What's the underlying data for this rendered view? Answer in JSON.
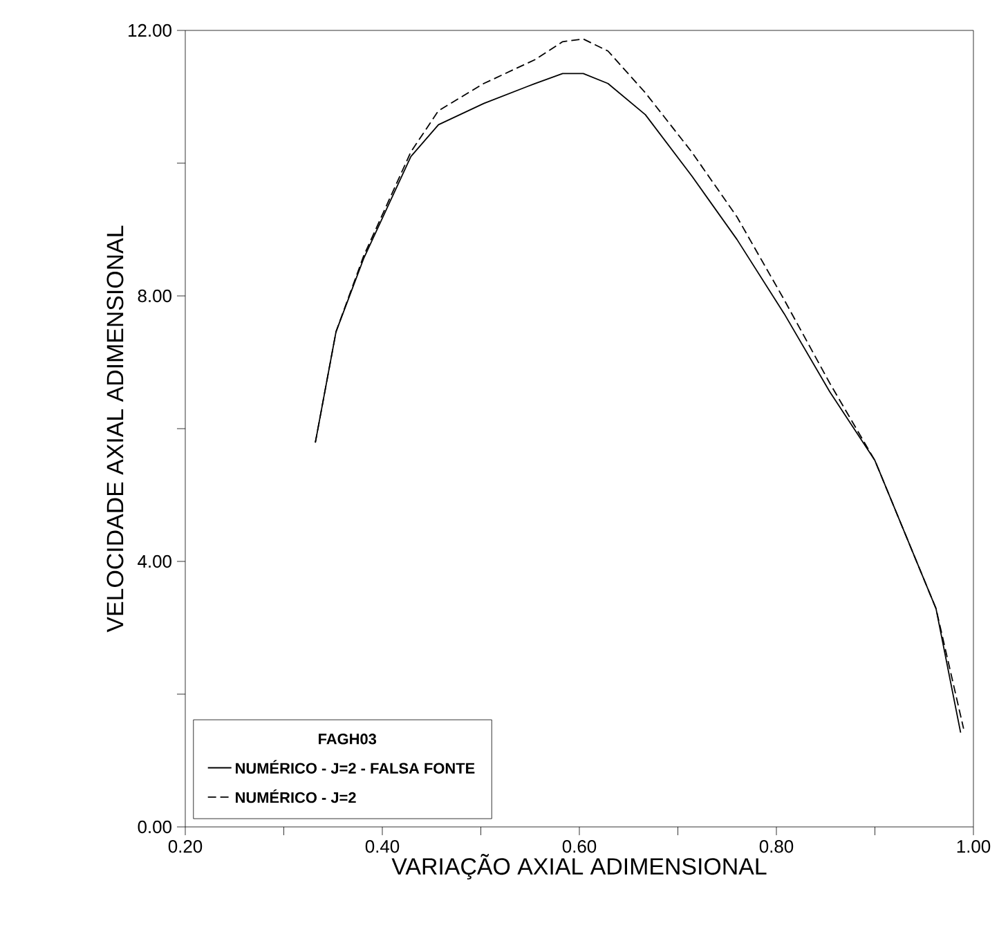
{
  "chart_data": {
    "type": "line",
    "xlabel": "VARIAÇÃO AXIAL ADIMENSIONAL",
    "ylabel": "VELOCIDADE AXIAL ADIMENSIONAL",
    "legend_title": "FAGH03",
    "legend": "bottom left",
    "grid": false,
    "marker": "none",
    "xlim": [
      0.2,
      1.0
    ],
    "ylim": [
      0,
      12
    ],
    "xticks": [
      {
        "value": 0.2,
        "label": "0.20"
      },
      {
        "value": 0.3,
        "label": null
      },
      {
        "value": 0.4,
        "label": "0.40"
      },
      {
        "value": 0.5,
        "label": null
      },
      {
        "value": 0.6,
        "label": "0.60"
      },
      {
        "value": 0.7,
        "label": null
      },
      {
        "value": 0.8,
        "label": "0.80"
      },
      {
        "value": 0.9,
        "label": null
      },
      {
        "value": 1.0,
        "label": "1.00"
      }
    ],
    "yticks": [
      {
        "value": 0,
        "label": "0.00"
      },
      {
        "value": 2,
        "label": null
      },
      {
        "value": 4,
        "label": "4.00"
      },
      {
        "value": 6,
        "label": null
      },
      {
        "value": 8,
        "label": "8.00"
      },
      {
        "value": 10,
        "label": null
      },
      {
        "value": 12,
        "label": "12.00"
      }
    ],
    "series": [
      {
        "name": "NUMÉRICO - J=2 - FALSA FONTE",
        "color": "#000000",
        "line_style": "solid",
        "x": [
          0.332,
          0.353,
          0.381,
          0.429,
          0.457,
          0.503,
          0.555,
          0.583,
          0.604,
          0.629,
          0.667,
          0.714,
          0.76,
          0.808,
          0.854,
          0.9,
          0.962,
          0.987
        ],
        "values": [
          5.79,
          7.46,
          8.56,
          10.1,
          10.58,
          10.9,
          11.2,
          11.35,
          11.35,
          11.2,
          10.73,
          9.81,
          8.85,
          7.73,
          6.56,
          5.52,
          3.29,
          1.42
        ]
      },
      {
        "name": "NUMÉRICO - J=2",
        "color": "#000000",
        "line_style": "dashed",
        "x": [
          0.332,
          0.353,
          0.381,
          0.429,
          0.457,
          0.503,
          0.555,
          0.583,
          0.604,
          0.629,
          0.667,
          0.714,
          0.76,
          0.808,
          0.854,
          0.9,
          0.962,
          0.99
        ],
        "values": [
          5.79,
          7.46,
          8.6,
          10.17,
          10.79,
          11.2,
          11.56,
          11.83,
          11.87,
          11.69,
          11.06,
          10.17,
          9.19,
          7.94,
          6.69,
          5.52,
          3.29,
          1.48
        ]
      }
    ]
  }
}
